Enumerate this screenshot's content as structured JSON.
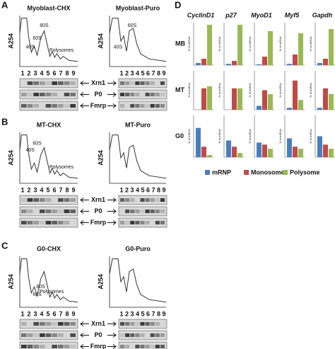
{
  "panels": [
    {
      "letter": "A",
      "lanes": [
        "1",
        "2",
        "3",
        "4",
        "5",
        "6",
        "7",
        "8",
        "9"
      ],
      "proteins": [
        "Xrn1",
        "P0",
        "Fmrp"
      ],
      "profiles": [
        {
          "title": "Myoblast-CHX",
          "ylabel": "A254",
          "labels": [
            "40S",
            "60S",
            "80S",
            "Polysomes"
          ]
        },
        {
          "title": "Myoblast-Puro",
          "ylabel": "A254",
          "labels": [
            "40S",
            "60S"
          ]
        }
      ]
    },
    {
      "letter": "B",
      "lanes": [
        "1",
        "2",
        "3",
        "4",
        "5",
        "6",
        "7",
        "8",
        "9"
      ],
      "proteins": [
        "Xrn1",
        "P0",
        "Fmrp"
      ],
      "profiles": [
        {
          "title": "MT-CHX",
          "ylabel": "A254",
          "labels": [
            "40S",
            "60S",
            "Polysomes"
          ]
        },
        {
          "title": "MT-Puro",
          "ylabel": "A254",
          "labels": []
        }
      ]
    },
    {
      "letter": "C",
      "lanes": [
        "1",
        "2",
        "3",
        "4",
        "5",
        "6",
        "7",
        "8",
        "9"
      ],
      "proteins": [
        "Xrn1",
        "P0",
        "Fmrp"
      ],
      "profiles": [
        {
          "title": "G0-CHX",
          "ylabel": "A254",
          "labels": [
            "60S",
            "80S",
            "Polysomes"
          ]
        },
        {
          "title": "G0-Puro",
          "ylabel": "A254",
          "labels": []
        }
      ]
    }
  ],
  "panel_d": {
    "letter": "D",
    "genes": [
      "CyclinD1",
      "p27",
      "MyoD1",
      "Myf5",
      "Gapdh"
    ],
    "ylabel": "% of mRNA",
    "ylim": [
      0,
      100
    ],
    "series": [
      {
        "name": "mRNP",
        "color": "#4a7ebb"
      },
      {
        "name": "Monosome",
        "color": "#be4b48"
      },
      {
        "name": "Polysome",
        "color": "#98b954"
      }
    ],
    "rows": [
      {
        "label": "MB",
        "values": [
          [
            5,
            15,
            95
          ],
          [
            3,
            10,
            95
          ],
          [
            2,
            20,
            80
          ],
          [
            3,
            25,
            75
          ],
          [
            5,
            15,
            85
          ]
        ]
      },
      {
        "label": "MT",
        "values": [
          [
            0,
            55,
            60
          ],
          [
            0,
            55,
            55
          ],
          [
            10,
            50,
            40
          ],
          [
            5,
            75,
            25
          ],
          [
            5,
            55,
            40
          ]
        ]
      },
      {
        "label": "G0",
        "values": [
          [
            70,
            25,
            5
          ],
          [
            40,
            25,
            10
          ],
          [
            35,
            30,
            20
          ],
          [
            45,
            25,
            20
          ],
          [
            50,
            30,
            20
          ]
        ]
      }
    ]
  }
}
